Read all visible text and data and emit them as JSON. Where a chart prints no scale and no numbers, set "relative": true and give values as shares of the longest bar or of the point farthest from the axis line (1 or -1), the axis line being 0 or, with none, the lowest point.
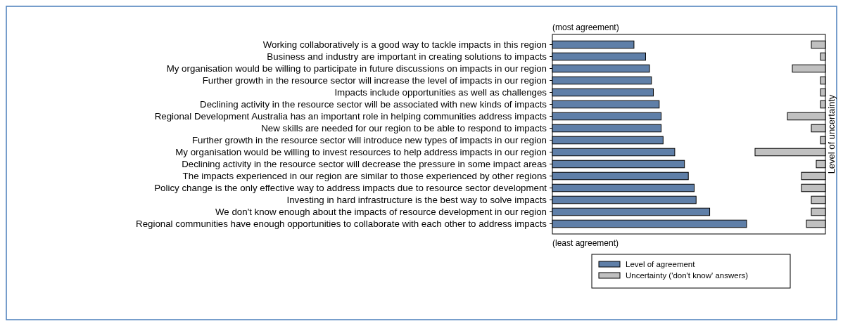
{
  "chart_data": [
    {
      "type": "bar",
      "orientation": "horizontal",
      "relative": true,
      "legend": "bottom",
      "categories": [
        "Working collaboratively is a good way to tackle impacts in this region",
        "Business and industry are important in creating solutions to impacts",
        "My organisation would be willing to participate in future discussions on impacts in our region",
        "Further growth  in the resource sector will increase the level of impacts in our region",
        "Impacts include opportunities as well as challenges",
        "Declining activity in the resource sector will be associated with new kinds of impacts",
        "Regional Development Australia has an important role in helping communities address impacts",
        "New skills are needed for our region to be able to respond to impacts",
        "Further growth  in the resource sector will introduce new types of impacts in our region",
        "My organisation would be willing to invest resources to help address impacts in our region",
        "Declining activity in the resource sector will decrease the pressure in some impact areas",
        "The impacts experienced in our region are similar to those experienced by other regions",
        "Policy change is the only effective way to address impacts due to resource sector development",
        "Investing in hard infrastructure is the best way to solve impacts",
        "We don't know enough about the impacts of resource development in our region",
        "Regional communities have enough opportunities to collaborate with each other to address impacts"
      ],
      "series": [
        {
          "name": "Level of agreement",
          "color": "#5f7fa8",
          "values": [
            0.42,
            0.48,
            0.5,
            0.51,
            0.52,
            0.55,
            0.56,
            0.56,
            0.57,
            0.63,
            0.68,
            0.7,
            0.73,
            0.74,
            0.81,
            1
          ]
        }
      ],
      "annotations": [
        "(most agreement)",
        "(least agreement)"
      ]
    },
    {
      "type": "bar",
      "orientation": "horizontal",
      "relative": true,
      "legend": "bottom",
      "ylabel": "Level of uncertainty",
      "categories": [
        null,
        null,
        null,
        null,
        null,
        null,
        null,
        null,
        null,
        null,
        null,
        null,
        null,
        null,
        null,
        null
      ],
      "series": [
        {
          "name": "Uncertainty ('don't know' answers)",
          "color": "#c0c0c0",
          "values": [
            0.2,
            0.07,
            0.47,
            0.07,
            0.07,
            0.07,
            0.54,
            0.2,
            0.07,
            1,
            0.13,
            0.34,
            0.34,
            0.2,
            0.2,
            0.27
          ]
        }
      ]
    }
  ]
}
